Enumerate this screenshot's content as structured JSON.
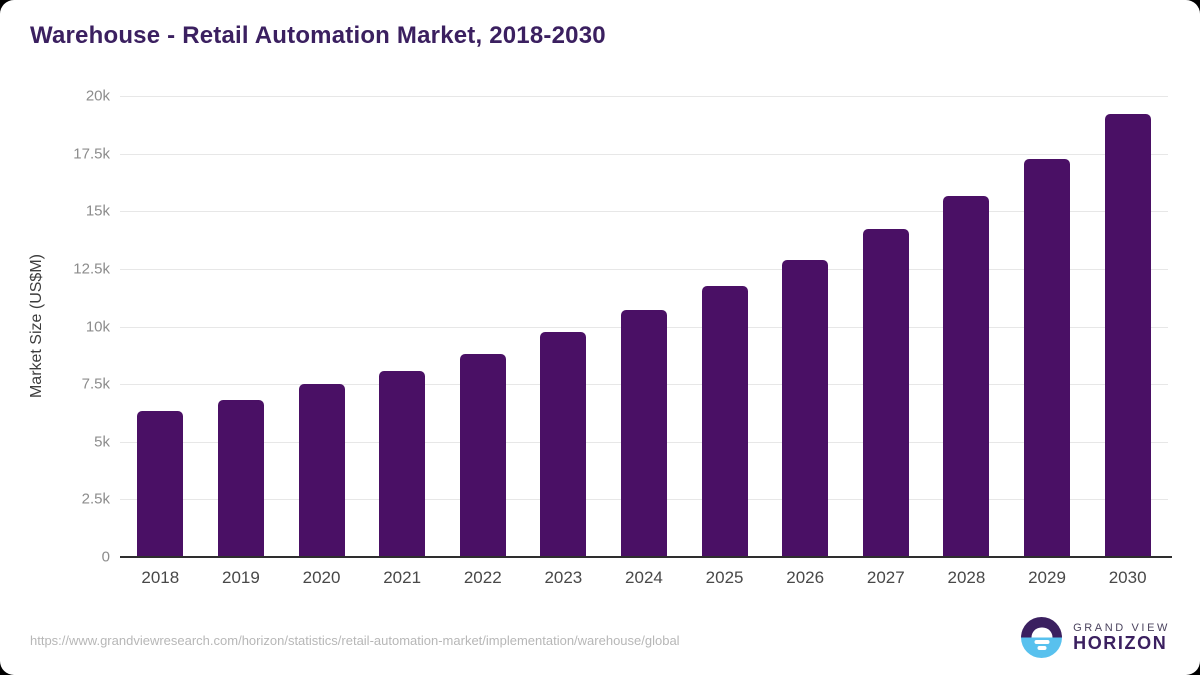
{
  "page": {
    "source_url": "https://www.grandviewresearch.com/horizon/statistics/retail-automation-market/implementation/warehouse/global"
  },
  "branding": {
    "name_line1": "GRAND VIEW",
    "name_line2": "HORIZON",
    "logo_icon": "horizon-sun-circle-icon",
    "colors": {
      "purple": "#3b2060",
      "blue": "#58c1ee"
    }
  },
  "chart_data": {
    "type": "bar",
    "title": "Warehouse - Retail Automation Market, 2018-2030",
    "xlabel": "",
    "ylabel": "Market Size (US$M)",
    "categories": [
      "2018",
      "2019",
      "2020",
      "2021",
      "2022",
      "2023",
      "2024",
      "2025",
      "2026",
      "2027",
      "2028",
      "2029",
      "2030"
    ],
    "values": [
      6350,
      6830,
      7520,
      8080,
      8810,
      9760,
      10710,
      11750,
      12870,
      14210,
      15680,
      17280,
      19220
    ],
    "ylim": [
      0,
      20000
    ],
    "ytick_labels": [
      "0",
      "2.5k",
      "5k",
      "7.5k",
      "10k",
      "12.5k",
      "15k",
      "17.5k",
      "20k"
    ],
    "grid": true,
    "legend": false,
    "bar_color": "#4a1065",
    "title_color": "#3b2060",
    "gridline_color": "#e7e7e7",
    "axis_line_color": "#2e2e2e"
  }
}
